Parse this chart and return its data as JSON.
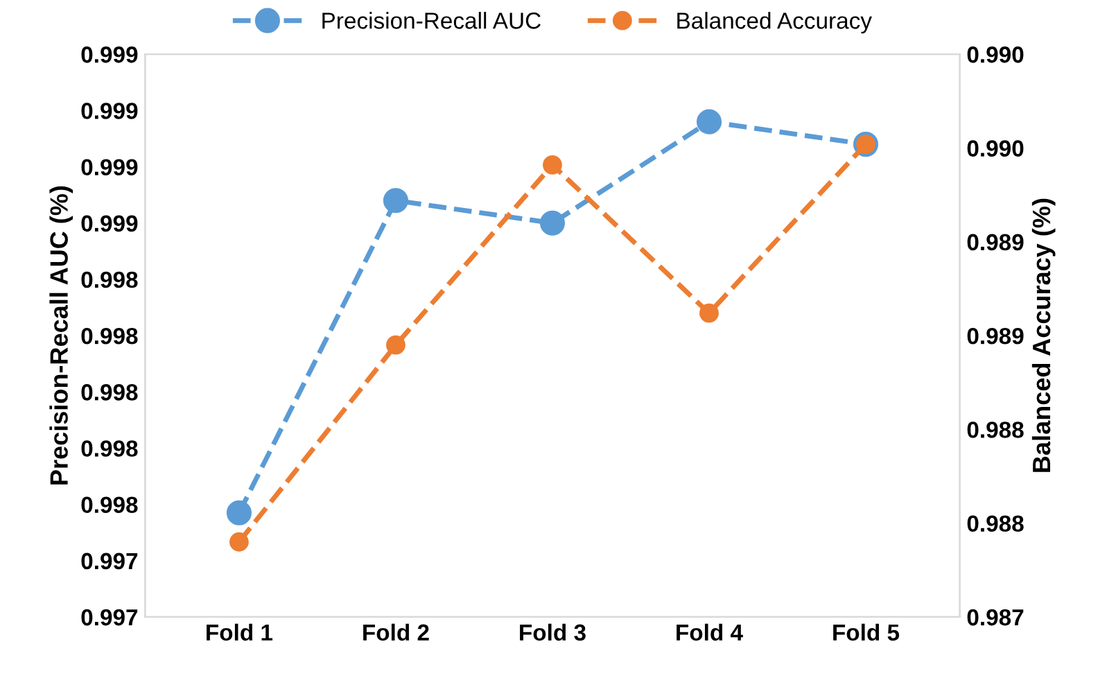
{
  "chart_data": {
    "type": "line",
    "categories": [
      "Fold 1",
      "Fold 2",
      "Fold 3",
      "Fold 4",
      "Fold 5"
    ],
    "ylabel": "Precision-Recall AUC (%)",
    "y2label": "Balanced Accuracy (%)",
    "series": [
      {
        "name": "Precision-Recall AUC",
        "color": "#5b9bd5",
        "values": [
          0.99757,
          0.99868,
          0.9986,
          0.99896,
          0.99888
        ]
      },
      {
        "name": "Balanced Accuracy",
        "color": "#ed7d31",
        "axis": "y2",
        "values": [
          0.9874,
          0.98845,
          0.98941,
          0.98862,
          0.98952
        ]
      }
    ],
    "ylim": [
      0.9972,
      0.9992
    ],
    "yticks": [
      {
        "value": 0.9972,
        "label": "0.997"
      },
      {
        "value": 0.9974,
        "label": "0.997"
      },
      {
        "value": 0.9976,
        "label": "0.998"
      },
      {
        "value": 0.9978,
        "label": "0.998"
      },
      {
        "value": 0.998,
        "label": "0.998"
      },
      {
        "value": 0.9982,
        "label": "0.998"
      },
      {
        "value": 0.9984,
        "label": "0.998"
      },
      {
        "value": 0.9986,
        "label": "0.999"
      },
      {
        "value": 0.9988,
        "label": "0.999"
      },
      {
        "value": 0.999,
        "label": "0.999"
      },
      {
        "value": 0.9992,
        "label": "0.999"
      }
    ],
    "y2lim": [
      0.987,
      0.99
    ],
    "y2ticks": [
      {
        "value": 0.987,
        "label": "0.987"
      },
      {
        "value": 0.9875,
        "label": "0.988"
      },
      {
        "value": 0.988,
        "label": "0.988"
      },
      {
        "value": 0.9885,
        "label": "0.989"
      },
      {
        "value": 0.989,
        "label": "0.989"
      },
      {
        "value": 0.9895,
        "label": "0.990"
      },
      {
        "value": 0.99,
        "label": "0.990"
      }
    ],
    "legend": "top",
    "marker": "circle",
    "line_style": "dashed",
    "grid": false
  }
}
